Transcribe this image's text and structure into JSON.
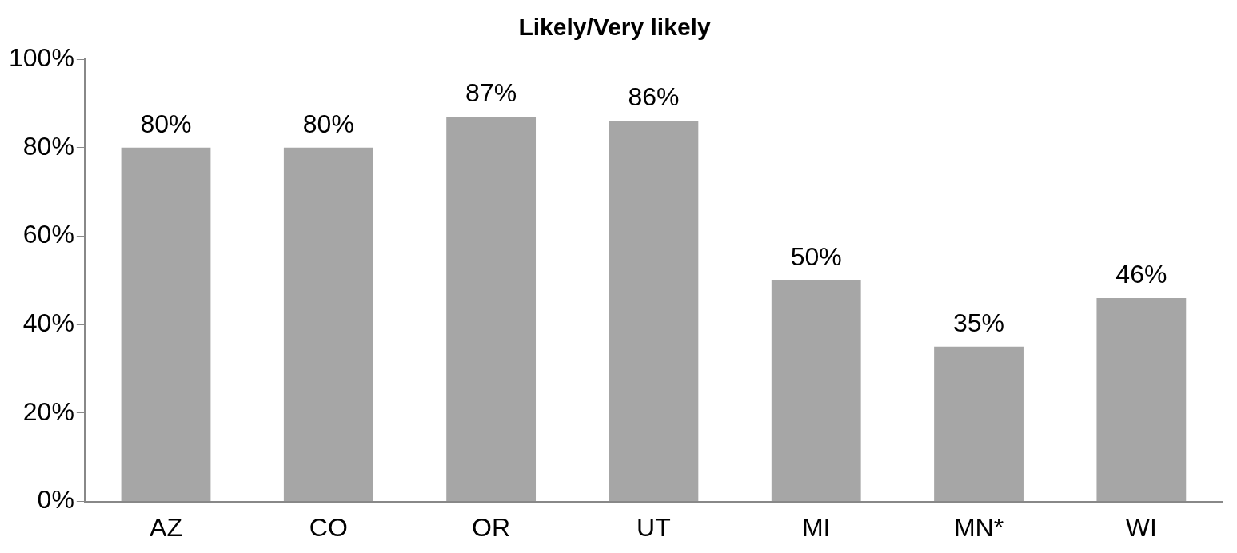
{
  "chart_data": {
    "type": "bar",
    "title": "Likely/Very likely",
    "categories": [
      "AZ",
      "CO",
      "OR",
      "UT",
      "MI",
      "MN*",
      "WI"
    ],
    "values": [
      80,
      80,
      87,
      86,
      50,
      35,
      46
    ],
    "value_labels": [
      "80%",
      "80%",
      "87%",
      "86%",
      "50%",
      "35%",
      "46%"
    ],
    "color": "#a6a6a6",
    "ylim": [
      0,
      100
    ],
    "yticks": [
      {
        "value": 0,
        "label": "0%"
      },
      {
        "value": 20,
        "label": "20%"
      },
      {
        "value": 40,
        "label": "40%"
      },
      {
        "value": 60,
        "label": "60%"
      },
      {
        "value": 80,
        "label": "80%"
      },
      {
        "value": 100,
        "label": "100%"
      }
    ],
    "grid": false,
    "legend": false
  }
}
